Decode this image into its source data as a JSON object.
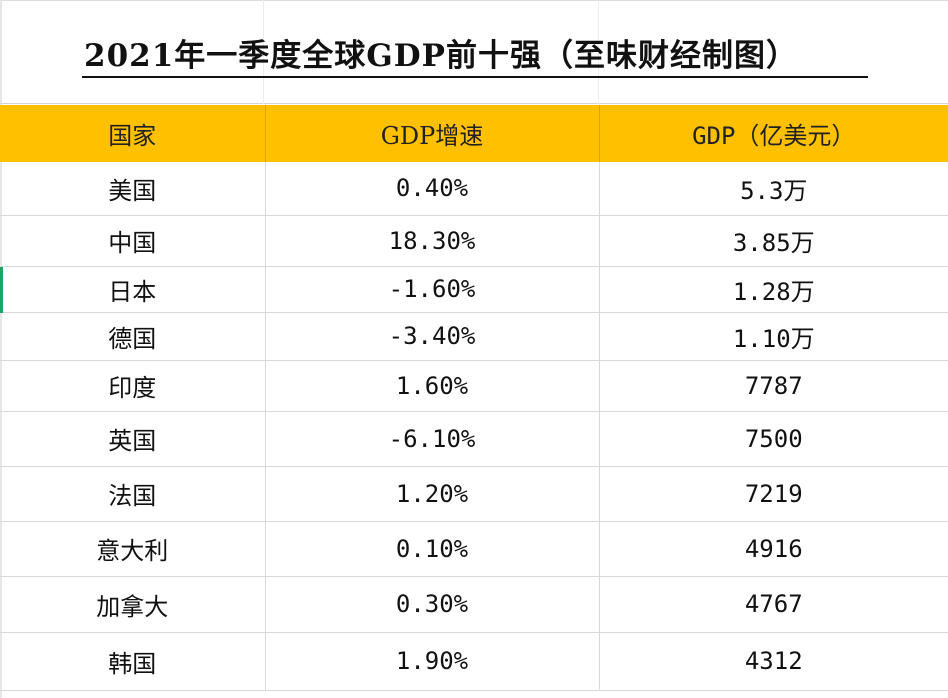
{
  "title": "2021年一季度全球GDP前十强（至味财经制图）",
  "columns": [
    "国家",
    "GDP增速",
    "GDP（亿美元）"
  ],
  "rows": [
    {
      "country": "美国",
      "growth": "0.40%",
      "gdp": "5.3万"
    },
    {
      "country": "中国",
      "growth": "18.30%",
      "gdp": "3.85万"
    },
    {
      "country": "日本",
      "growth": "-1.60%",
      "gdp": "1.28万"
    },
    {
      "country": "德国",
      "growth": "-3.40%",
      "gdp": "1.10万"
    },
    {
      "country": "印度",
      "growth": "1.60%",
      "gdp": "7787"
    },
    {
      "country": "英国",
      "growth": "-6.10%",
      "gdp": "7500"
    },
    {
      "country": "法国",
      "growth": "1.20%",
      "gdp": "7219"
    },
    {
      "country": "意大利",
      "growth": "0.10%",
      "gdp": "4916"
    },
    {
      "country": "加拿大",
      "growth": "0.30%",
      "gdp": "4767"
    },
    {
      "country": "韩国",
      "growth": "1.90%",
      "gdp": "4312"
    }
  ],
  "colors": {
    "header_fill": "#ffc000",
    "selection_marker": "#21a366",
    "grid": "#d9d9d9"
  }
}
